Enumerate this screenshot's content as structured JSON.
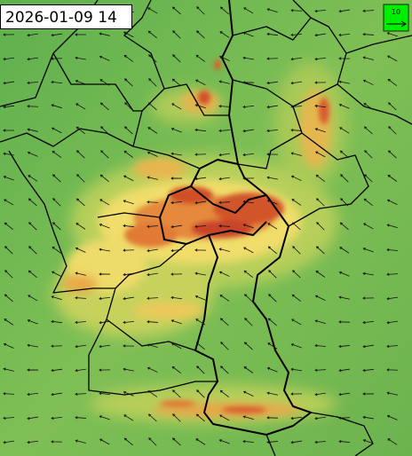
{
  "timestamp": "2026-01-09 14",
  "wind_legend": {
    "label": "10"
  }
}
